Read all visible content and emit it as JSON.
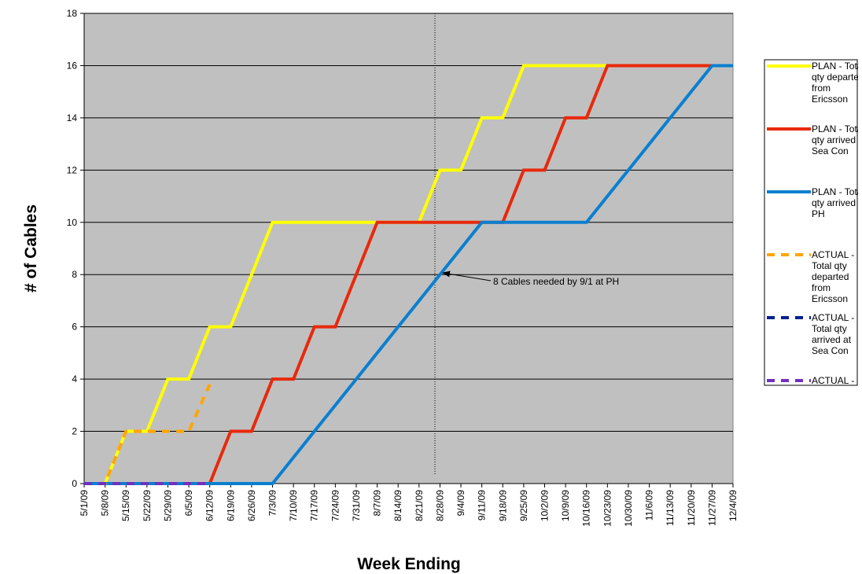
{
  "chart_data": {
    "type": "line",
    "x_label": "Week Ending",
    "y_label": "# of Cables",
    "annotation": "8 Cables needed by 9/1 at PH",
    "categories": [
      "5/1/09",
      "5/8/09",
      "5/15/09",
      "5/22/09",
      "5/29/09",
      "6/5/09",
      "6/12/09",
      "6/19/09",
      "6/26/09",
      "7/3/09",
      "7/10/09",
      "7/17/09",
      "7/24/09",
      "7/31/09",
      "8/7/09",
      "8/14/09",
      "8/21/09",
      "8/28/09",
      "9/4/09",
      "9/11/09",
      "9/18/09",
      "9/25/09",
      "10/2/09",
      "10/9/09",
      "10/16/09",
      "10/23/09",
      "10/30/09",
      "11/6/09",
      "11/13/09",
      "11/20/09",
      "11/27/09",
      "12/4/09"
    ],
    "series": [
      {
        "name": "PLAN - Total qty departed from Ericsson",
        "color": "#ffff00",
        "dashed": false,
        "values": [
          0,
          0,
          2,
          2,
          4,
          4,
          6,
          6,
          8,
          10,
          10,
          10,
          10,
          10,
          10,
          10,
          10,
          12,
          12,
          14,
          14,
          16,
          16,
          16,
          16,
          16,
          16,
          16,
          16,
          16,
          16,
          16
        ]
      },
      {
        "name": "PLAN - Total qty arrived at Sea Con",
        "color": "#e8290b",
        "dashed": false,
        "values": [
          0,
          0,
          0,
          0,
          0,
          0,
          0,
          2,
          2,
          4,
          4,
          6,
          6,
          8,
          10,
          10,
          10,
          10,
          10,
          10,
          10,
          12,
          12,
          14,
          14,
          16,
          16,
          16,
          16,
          16,
          16,
          16
        ]
      },
      {
        "name": "PLAN - Total qty arrived at PH",
        "color": "#0a7fd0",
        "dashed": false,
        "values": [
          0,
          0,
          0,
          0,
          0,
          0,
          0,
          0,
          0,
          0,
          1,
          2,
          3,
          4,
          5,
          6,
          7,
          8,
          9,
          10,
          10,
          10,
          10,
          10,
          10,
          11,
          12,
          13,
          14,
          15,
          16,
          16
        ]
      },
      {
        "name": "ACTUAL - Total qty departed from Ericsson",
        "color": "#ffa500",
        "dashed": true,
        "values": [
          0,
          0,
          2,
          2,
          2,
          2,
          3.8,
          null,
          null,
          null,
          null,
          null,
          null,
          null,
          null,
          null,
          null,
          null,
          null,
          null,
          null,
          null,
          null,
          null,
          null,
          null,
          null,
          null,
          null,
          null,
          null,
          null
        ]
      },
      {
        "name": "ACTUAL - Total qty arrived at Sea Con",
        "color": "#00208f",
        "dashed": true,
        "values": [
          0,
          0,
          0,
          0,
          0,
          0,
          0,
          null,
          null,
          null,
          null,
          null,
          null,
          null,
          null,
          null,
          null,
          null,
          null,
          null,
          null,
          null,
          null,
          null,
          null,
          null,
          null,
          null,
          null,
          null,
          null,
          null
        ]
      },
      {
        "name": "ACTUAL -",
        "color": "#7030c0",
        "dashed": true,
        "values": [
          0,
          0,
          0,
          0,
          0,
          0,
          0,
          null,
          null,
          null,
          null,
          null,
          null,
          null,
          null,
          null,
          null,
          null,
          null,
          null,
          null,
          null,
          null,
          null,
          null,
          null,
          null,
          null,
          null,
          null,
          null,
          null
        ]
      }
    ],
    "ylim": [
      0,
      18
    ],
    "yticks": [
      0,
      2,
      4,
      6,
      8,
      10,
      12,
      14,
      16,
      18
    ],
    "grid": true
  }
}
